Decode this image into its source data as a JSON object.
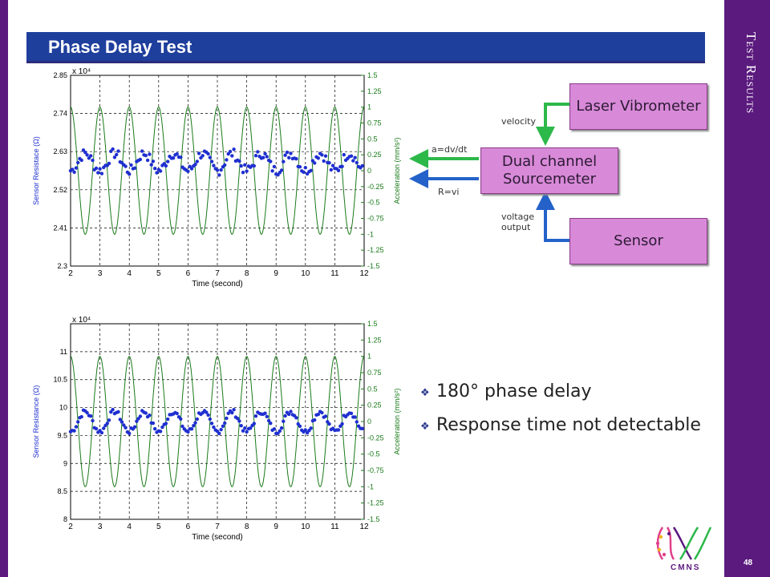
{
  "side_title": "Test Results",
  "page_number": "48",
  "slide_title": "Phase Delay Test",
  "diagram": {
    "laser": "Laser Vibrometer",
    "sourcemeter": "Dual channel Sourcemeter",
    "sensor": "Sensor",
    "velocity": "velocity",
    "voltage": "voltage output",
    "adv": "a=dv/dt",
    "rvi": "R=vi"
  },
  "bullets": [
    "180° phase delay",
    "Response time not detectable"
  ],
  "logo_text": "CMNS",
  "chart_data": [
    {
      "type": "line",
      "xlabel": "Time (second)",
      "ylabel": "Sensor Resistace (Ω)",
      "y2label": "Acceleration (mm/s²)",
      "exponent": "x 10⁴",
      "xticks": [
        "2",
        "3",
        "4",
        "5",
        "6",
        "7",
        "8",
        "9",
        "10",
        "11",
        "12"
      ],
      "xlim": [
        2,
        12
      ],
      "yticks": [
        "2.3",
        "2.41",
        "2.52",
        "2.63",
        "2.74",
        "2.85"
      ],
      "ylim": [
        2.3,
        2.85
      ],
      "y2ticks": [
        "-1.5",
        "-1.25",
        "-1",
        "-0.75",
        "-0.5",
        "-0.25",
        "0",
        "0.25",
        "0.5",
        "0.75",
        "1",
        "1.25",
        "1.5"
      ],
      "y2lim": [
        -1.5,
        1.5
      ],
      "series": [
        {
          "kind": "sine",
          "color": "#1a7a1a",
          "amplitude": 1.0,
          "period": 1.0,
          "phase": 0.25,
          "axis": "right"
        },
        {
          "kind": "dots",
          "color": "#1f2fd0",
          "center": 2.6,
          "amplitude": 0.025,
          "period": 1.0,
          "noise": 0.015,
          "axis": "left"
        }
      ],
      "grid": true
    },
    {
      "type": "line",
      "xlabel": "Time (second)",
      "ylabel": "Sensor Resistance (Ω)",
      "y2label": "Acceleration (mm/s²)",
      "exponent": "x 10⁴",
      "xticks": [
        "2",
        "3",
        "4",
        "5",
        "6",
        "7",
        "8",
        "9",
        "10",
        "11",
        "12"
      ],
      "xlim": [
        2,
        12
      ],
      "yticks": [
        "8",
        "8.5",
        "9",
        "9.5",
        "10",
        "10.5",
        "11"
      ],
      "ylim": [
        8,
        11.5
      ],
      "y2ticks": [
        "-1.5",
        "-1.25",
        "-1",
        "-0.75",
        "-0.5",
        "-0.25",
        "0",
        "0.25",
        "0.5",
        "0.75",
        "1",
        "1.25",
        "1.5"
      ],
      "y2lim": [
        -1.5,
        1.5
      ],
      "series": [
        {
          "kind": "sine",
          "color": "#1a7a1a",
          "amplitude": 1.0,
          "period": 1.0,
          "phase": 0.25,
          "axis": "right"
        },
        {
          "kind": "dots",
          "color": "#1f2fd0",
          "center": 9.75,
          "amplitude": 0.18,
          "period": 1.0,
          "noise": 0.05,
          "axis": "left"
        }
      ],
      "grid": true
    }
  ],
  "colors": {
    "frame": "#5b1a7e",
    "title_bar": "#1f3f9c",
    "box": "#d88ad8",
    "arrow_green": "#2db84a",
    "arrow_blue": "#2462c9"
  }
}
